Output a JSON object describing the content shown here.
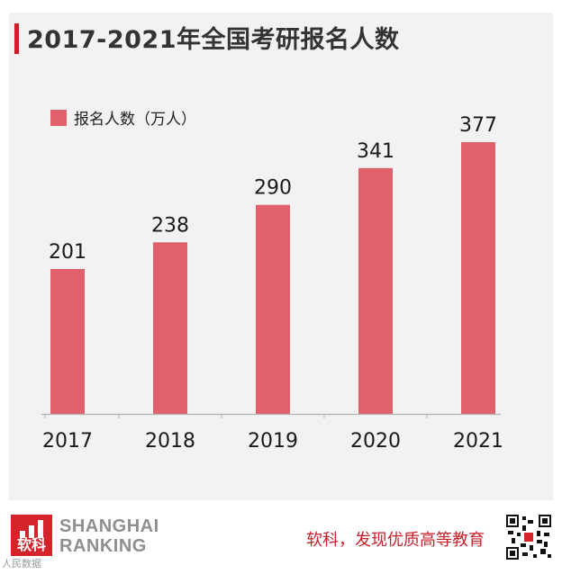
{
  "title": "2017-2021年全国考研报名人数",
  "chart_data": {
    "type": "bar",
    "categories": [
      "2017",
      "2018",
      "2019",
      "2020",
      "2021"
    ],
    "series": [
      {
        "name": "报名人数（万人）",
        "values": [
          201,
          238,
          290,
          341,
          377
        ]
      }
    ],
    "data_labels": [
      "201",
      "238",
      "290",
      "341",
      "377"
    ],
    "ylim": [
      0,
      377
    ],
    "grid": false,
    "legend_position": "top-left",
    "bar_color": "#e0616b",
    "axis_color": "#b0b0b0"
  },
  "footer": {
    "logo_text": "软科",
    "brand_line1": "SHANGHAI",
    "brand_line2": "RANKING",
    "slogan": "软科，发现优质高等教育",
    "qr_icon": "qr-code-icon",
    "watermark": "人民数据"
  },
  "colors": {
    "accent": "#c8202a",
    "bar": "#e0616b",
    "card_background": "#f2f2f2"
  }
}
